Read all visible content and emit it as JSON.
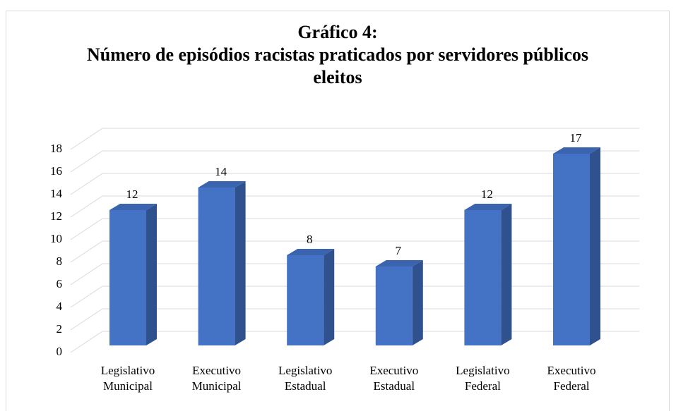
{
  "chart_data": {
    "type": "bar3d",
    "title": "Gráfico 4:",
    "subtitle": "Número de episódios racistas praticados por servidores públicos eleitos",
    "categories": [
      "Legislativo Municipal",
      "Executivo Municipal",
      "Legislativo Estadual",
      "Executivo Estadual",
      "Legislativo Federal",
      "Executivo Federal"
    ],
    "values": [
      12,
      14,
      8,
      7,
      12,
      17
    ],
    "color": "#4472c4",
    "ylim": [
      0,
      18
    ],
    "yticks": [
      0,
      2,
      4,
      6,
      8,
      10,
      12,
      14,
      16,
      18
    ],
    "grid": true
  }
}
